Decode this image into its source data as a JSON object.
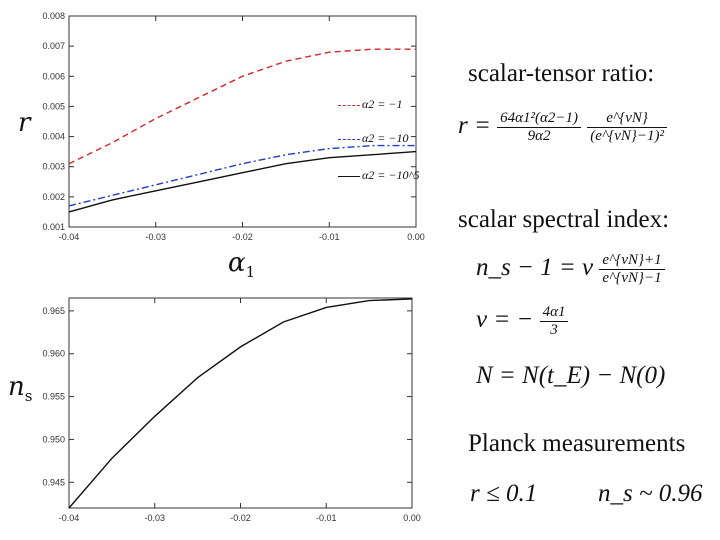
{
  "chart_data": [
    {
      "type": "line",
      "ylabel": "r",
      "xlabel": "α1",
      "xlim": [
        -0.04,
        0.0
      ],
      "ylim": [
        0.001,
        0.008
      ],
      "xticks": [
        "-0.04",
        "-0.03",
        "-0.02",
        "-0.01",
        "0.00"
      ],
      "yticks": [
        "0.001",
        "0.002",
        "0.003",
        "0.004",
        "0.005",
        "0.006",
        "0.007",
        "0.008"
      ],
      "x": [
        -0.04,
        -0.035,
        -0.03,
        -0.025,
        -0.02,
        -0.015,
        -0.01,
        -0.005,
        0.0
      ],
      "series": [
        {
          "name": "α2 = -1",
          "color": "#d62728",
          "dash": "6,4",
          "values": [
            0.0031,
            0.0038,
            0.0046,
            0.0053,
            0.006,
            0.0065,
            0.0068,
            0.0069,
            0.0069
          ]
        },
        {
          "name": "α2 = -10",
          "color": "#1f3fbf",
          "dash": "7,3,2,3",
          "values": [
            0.0017,
            0.00205,
            0.0024,
            0.00275,
            0.0031,
            0.0034,
            0.0036,
            0.0037,
            0.0037
          ]
        },
        {
          "name": "α2 = -10^5",
          "color": "#111111",
          "dash": "",
          "values": [
            0.0015,
            0.0019,
            0.0022,
            0.0025,
            0.0028,
            0.0031,
            0.0033,
            0.0034,
            0.0035
          ]
        }
      ]
    },
    {
      "type": "line",
      "ylabel": "n_s",
      "xlim": [
        -0.04,
        0.0
      ],
      "ylim": [
        0.942,
        0.9665
      ],
      "xticks": [
        "-0.04",
        "-0.03",
        "-0.02",
        "-0.01",
        "0.00"
      ],
      "yticks": [
        "0.945",
        "0.950",
        "0.955",
        "0.960",
        "0.965"
      ],
      "x": [
        -0.04,
        -0.035,
        -0.03,
        -0.025,
        -0.02,
        -0.015,
        -0.01,
        -0.005,
        0.0
      ],
      "series": [
        {
          "color": "#111111",
          "dash": "",
          "values": [
            0.942,
            0.9478,
            0.9527,
            0.9572,
            0.9608,
            0.9637,
            0.9654,
            0.9662,
            0.9664
          ]
        }
      ]
    }
  ],
  "legend": {
    "item1": "α2 = −1",
    "item2": "α2 = −10",
    "item3": "α2 = −10^5"
  },
  "axis_labels": {
    "r": "r",
    "alpha": "α",
    "alpha_sub": "1",
    "ns": "n",
    "ns_sub": "s"
  },
  "text": {
    "scalar_tensor_heading": "scalar-tensor ratio:",
    "spectral_heading": "scalar spectral index:",
    "planck_heading": "Planck measurements",
    "planck_r": "r ≤ 0.1",
    "planck_ns": "n_s ~ 0.96",
    "eq_r_lhs": "r =",
    "eq_r_num1": "64α1²(α2−1)",
    "eq_r_den1": "9α2",
    "eq_r_num2": "e^{νN}",
    "eq_r_den2": "(e^{νN}−1)²",
    "eq_ns_lhs": "n_s − 1 = ν",
    "eq_ns_num": "e^{νN}+1",
    "eq_ns_den": "e^{νN}−1",
    "eq_nu_lhs": "ν = −",
    "eq_nu_num": "4α1",
    "eq_nu_den": "3",
    "eq_N": "N = N(t_E) − N(0)"
  }
}
